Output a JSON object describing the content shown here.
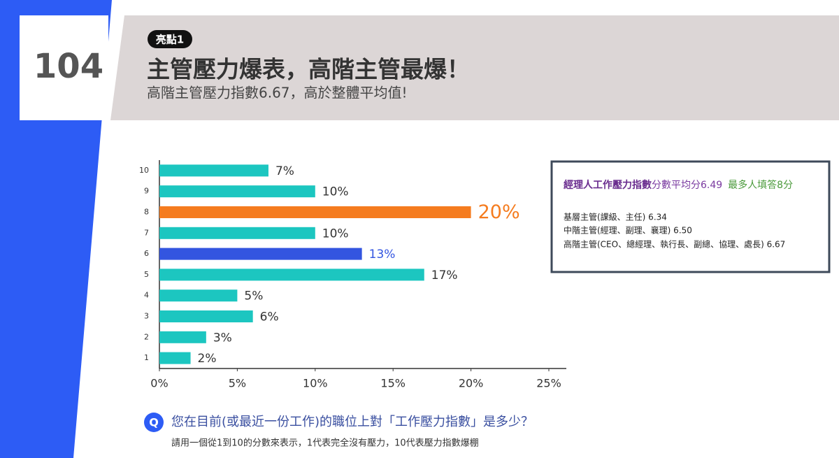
{
  "logo": "104",
  "header": {
    "badge": "亮點1",
    "title": "主管壓力爆表，高階主管最爆！",
    "subtitle": "高階主管壓力指數6.67，高於整體平均值!"
  },
  "chart_data": {
    "type": "hbar",
    "categories": [
      "10",
      "9",
      "8",
      "7",
      "6",
      "5",
      "4",
      "3",
      "2",
      "1"
    ],
    "values": [
      7,
      10,
      20,
      10,
      13,
      17,
      5,
      6,
      3,
      2
    ],
    "value_labels": [
      "7%",
      "10%",
      "20%",
      "10%",
      "13%",
      "17%",
      "5%",
      "6%",
      "3%",
      "2%"
    ],
    "color": "#1cc6c0",
    "colors": [
      "#1cc6c0",
      "#1cc6c0",
      "#f57c1f",
      "#1cc6c0",
      "#3355e0",
      "#1cc6c0",
      "#1cc6c0",
      "#1cc6c0",
      "#1cc6c0",
      "#1cc6c0"
    ],
    "xlim": [
      0,
      25
    ],
    "xticks": [
      {
        "value": 0,
        "label": "0%"
      },
      {
        "value": 5,
        "label": "5%"
      },
      {
        "value": 10,
        "label": "10%"
      },
      {
        "value": 15,
        "label": "15%"
      },
      {
        "value": 20,
        "label": "20%"
      },
      {
        "value": 25,
        "label": "25%"
      }
    ]
  },
  "info_box": {
    "headline": [
      "經理人工作壓力指數",
      "分數平均分6.49",
      "最多人填答8分"
    ],
    "lines": [
      "基層主管(課級、主任) 6.34",
      "中階主管(經理、副理、襄理) 6.50",
      "高階主管(CEO、總經理、執行長、副總、協理、處長) 6.67"
    ]
  },
  "question": {
    "icon": "Q",
    "text": "您在目前(或最近一份工作)的職位上對「工作壓力指數」是多少？",
    "note": "請用一個從1到10的分數來表示，1代表完全沒有壓力，10代表壓力指數爆棚"
  }
}
